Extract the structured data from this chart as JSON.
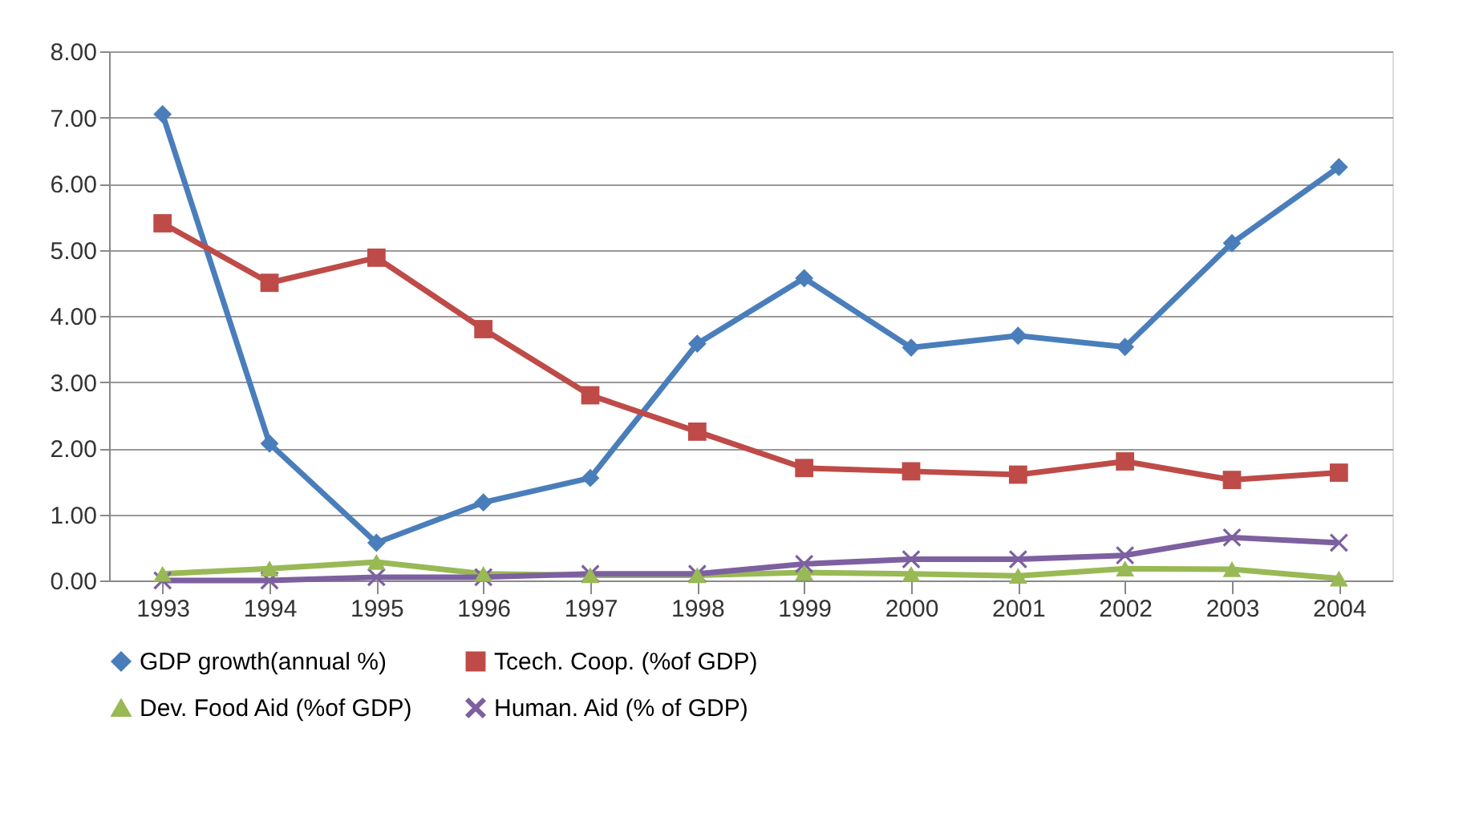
{
  "chart_data": {
    "type": "line",
    "categories": [
      "1993",
      "1994",
      "1995",
      "1996",
      "1997",
      "1998",
      "1999",
      "2000",
      "2001",
      "2002",
      "2003",
      "2004"
    ],
    "series": [
      {
        "name": "GDP growth(annual %)",
        "color": "#4a7ebb",
        "marker": "diamond",
        "values": [
          7.05,
          2.07,
          0.57,
          1.18,
          1.55,
          3.58,
          4.57,
          3.52,
          3.7,
          3.53,
          5.1,
          6.25
        ]
      },
      {
        "name": "Tcech. Coop. (%of GDP)",
        "color": "#be4b48",
        "marker": "square",
        "values": [
          5.4,
          4.5,
          4.88,
          3.8,
          2.8,
          2.25,
          1.7,
          1.65,
          1.6,
          1.8,
          1.52,
          1.63
        ]
      },
      {
        "name": "Dev. Food Aid (%of GDP)",
        "color": "#98b954",
        "marker": "triangle",
        "values": [
          0.1,
          0.18,
          0.28,
          0.1,
          0.08,
          0.08,
          0.12,
          0.1,
          0.07,
          0.18,
          0.17,
          0.03
        ]
      },
      {
        "name": "Human. Aid (% of GDP)",
        "color": "#7d60a0",
        "marker": "cross",
        "values": [
          0.0,
          0.0,
          0.05,
          0.05,
          0.1,
          0.1,
          0.25,
          0.32,
          0.32,
          0.38,
          0.65,
          0.57
        ]
      }
    ],
    "ylim": [
      0,
      8
    ],
    "yticks": [
      {
        "value": 0,
        "label": "0.00"
      },
      {
        "value": 1,
        "label": "1.00"
      },
      {
        "value": 2,
        "label": "2.00"
      },
      {
        "value": 3,
        "label": "3.00"
      },
      {
        "value": 4,
        "label": "4.00"
      },
      {
        "value": 5,
        "label": "5.00"
      },
      {
        "value": 6,
        "label": "6.00"
      },
      {
        "value": 7,
        "label": "7.00"
      },
      {
        "value": 8,
        "label": "8.00"
      }
    ],
    "grid": "y",
    "legend": "bottom",
    "line_style": "solid"
  }
}
